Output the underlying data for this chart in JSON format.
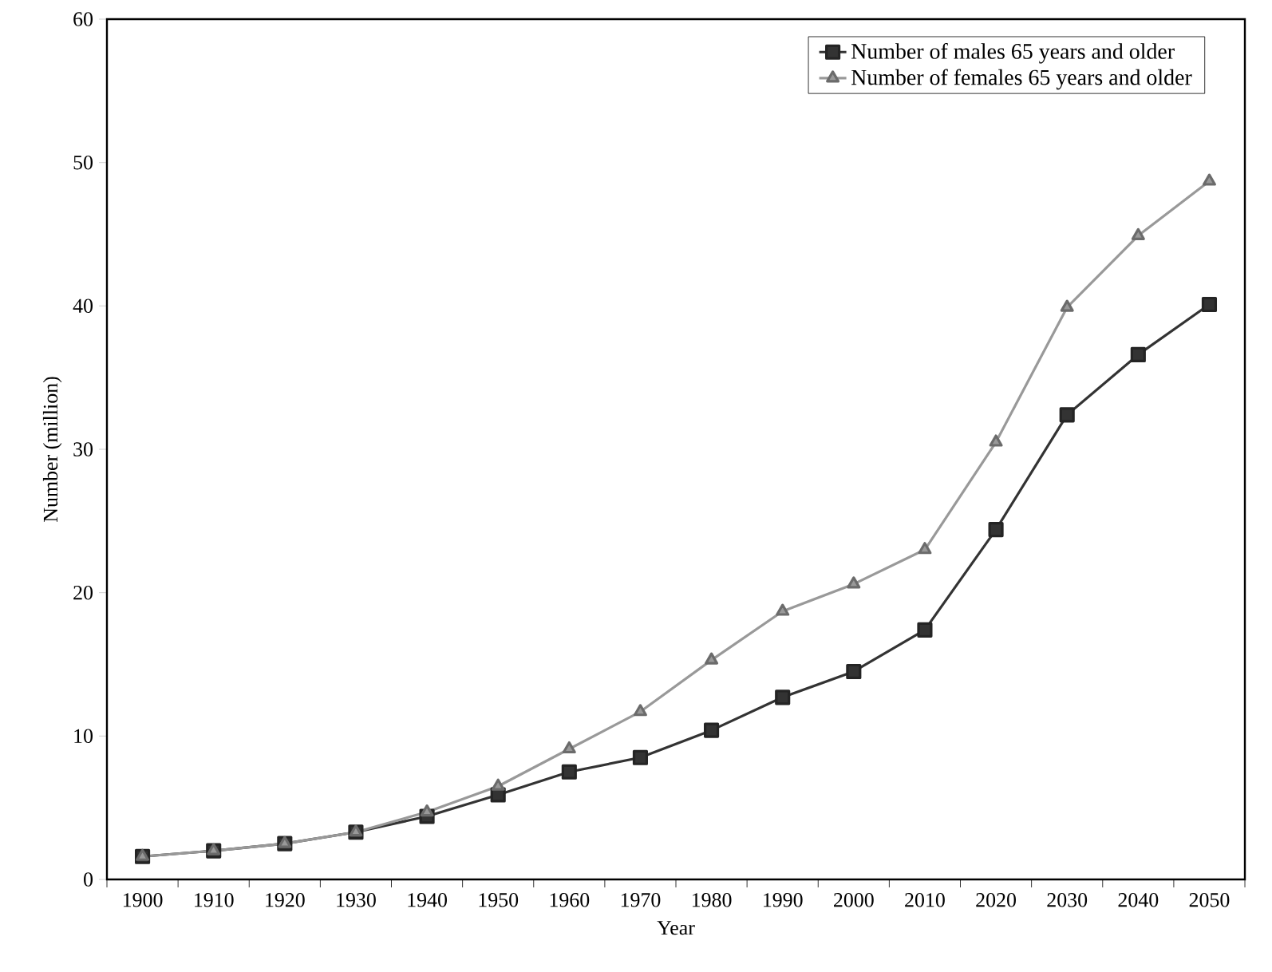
{
  "chart_data": {
    "type": "line",
    "xlabel": "Year",
    "ylabel": "Number (million)",
    "categories": [
      "1900",
      "1910",
      "1920",
      "1930",
      "1940",
      "1950",
      "1960",
      "1970",
      "1980",
      "1990",
      "2000",
      "2010",
      "2020",
      "2030",
      "2040",
      "2050"
    ],
    "series": [
      {
        "name": "Number of males 65 years and older",
        "color": "#333333",
        "marker": "square",
        "values": [
          1.6,
          2.0,
          2.5,
          3.3,
          4.4,
          5.9,
          7.5,
          8.5,
          10.4,
          12.7,
          14.5,
          17.4,
          24.4,
          32.4,
          36.6,
          40.1
        ]
      },
      {
        "name": "Number of females 65 years and older",
        "color": "#999999",
        "marker": "triangle",
        "values": [
          1.6,
          2.0,
          2.5,
          3.3,
          4.7,
          6.5,
          9.1,
          11.7,
          15.3,
          18.7,
          20.6,
          23.0,
          30.5,
          39.9,
          44.9,
          48.7
        ]
      }
    ],
    "ylim": [
      0,
      60
    ],
    "yticks": [
      0,
      10,
      20,
      30,
      40,
      50,
      60
    ],
    "grid": false,
    "legend": "top right",
    "line_style": "solid"
  }
}
